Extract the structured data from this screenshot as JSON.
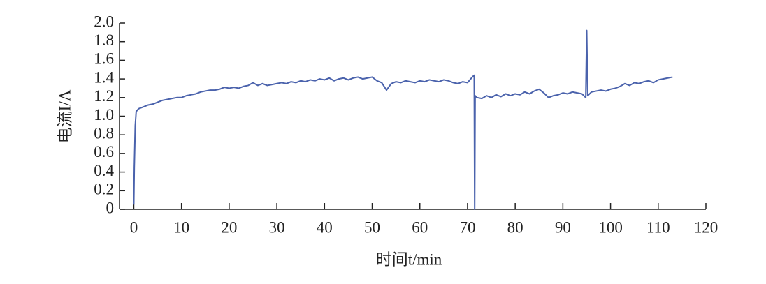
{
  "chart_data": {
    "type": "line",
    "xlabel": "时间t/min",
    "ylabel": "电流I/A",
    "xlim": [
      -3,
      120
    ],
    "ylim": [
      0,
      2
    ],
    "xticks": [
      0,
      10,
      20,
      30,
      40,
      50,
      60,
      70,
      80,
      90,
      100,
      110,
      120
    ],
    "yticks": [
      0,
      0.2,
      0.4,
      0.6,
      0.8,
      {
        "value": 1,
        "label": "1.0"
      },
      1.2,
      1.4,
      1.6,
      1.8,
      {
        "value": 2,
        "label": "2.0"
      }
    ],
    "grid": false,
    "series": [
      {
        "color": "#4a62ac",
        "x": [
          0,
          0.1,
          0.3,
          0.5,
          1,
          2,
          3,
          4,
          5,
          6,
          7,
          8,
          9,
          10,
          11,
          12,
          13,
          14,
          15,
          16,
          17,
          18,
          19,
          20,
          21,
          22,
          23,
          24,
          25,
          26,
          27,
          28,
          29,
          30,
          31,
          32,
          33,
          34,
          35,
          36,
          37,
          38,
          39,
          40,
          41,
          42,
          43,
          44,
          45,
          46,
          47,
          48,
          49,
          50,
          51,
          52,
          53,
          54,
          55,
          56,
          57,
          58,
          59,
          60,
          61,
          62,
          63,
          64,
          65,
          66,
          67,
          68,
          69,
          70,
          71,
          71.4,
          71.5,
          71.6,
          72,
          73,
          74,
          75,
          76,
          77,
          78,
          79,
          80,
          81,
          82,
          83,
          84,
          85,
          86,
          87,
          88,
          89,
          90,
          91,
          92,
          93,
          94,
          94.8,
          95,
          95.2,
          96,
          97,
          98,
          99,
          100,
          101,
          102,
          103,
          104,
          105,
          106,
          107,
          108,
          109,
          110,
          111,
          112,
          113
        ],
        "values": [
          0.05,
          0.45,
          0.9,
          1.05,
          1.08,
          1.1,
          1.12,
          1.13,
          1.15,
          1.17,
          1.18,
          1.19,
          1.2,
          1.2,
          1.22,
          1.23,
          1.24,
          1.26,
          1.27,
          1.28,
          1.28,
          1.29,
          1.31,
          1.3,
          1.31,
          1.3,
          1.32,
          1.33,
          1.36,
          1.33,
          1.35,
          1.33,
          1.34,
          1.35,
          1.36,
          1.35,
          1.37,
          1.36,
          1.38,
          1.37,
          1.39,
          1.38,
          1.4,
          1.39,
          1.41,
          1.38,
          1.4,
          1.41,
          1.39,
          1.41,
          1.42,
          1.4,
          1.41,
          1.42,
          1.38,
          1.36,
          1.28,
          1.35,
          1.37,
          1.36,
          1.38,
          1.37,
          1.36,
          1.38,
          1.37,
          1.39,
          1.38,
          1.37,
          1.39,
          1.38,
          1.36,
          1.35,
          1.37,
          1.36,
          1.42,
          1.44,
          0,
          1.22,
          1.2,
          1.19,
          1.22,
          1.2,
          1.23,
          1.21,
          1.24,
          1.22,
          1.24,
          1.23,
          1.26,
          1.24,
          1.27,
          1.29,
          1.25,
          1.2,
          1.22,
          1.23,
          1.25,
          1.24,
          1.26,
          1.25,
          1.24,
          1.2,
          1.92,
          1.22,
          1.26,
          1.27,
          1.28,
          1.27,
          1.29,
          1.3,
          1.32,
          1.35,
          1.33,
          1.36,
          1.35,
          1.37,
          1.38,
          1.36,
          1.39,
          1.4,
          1.41,
          1.42
        ]
      }
    ]
  }
}
